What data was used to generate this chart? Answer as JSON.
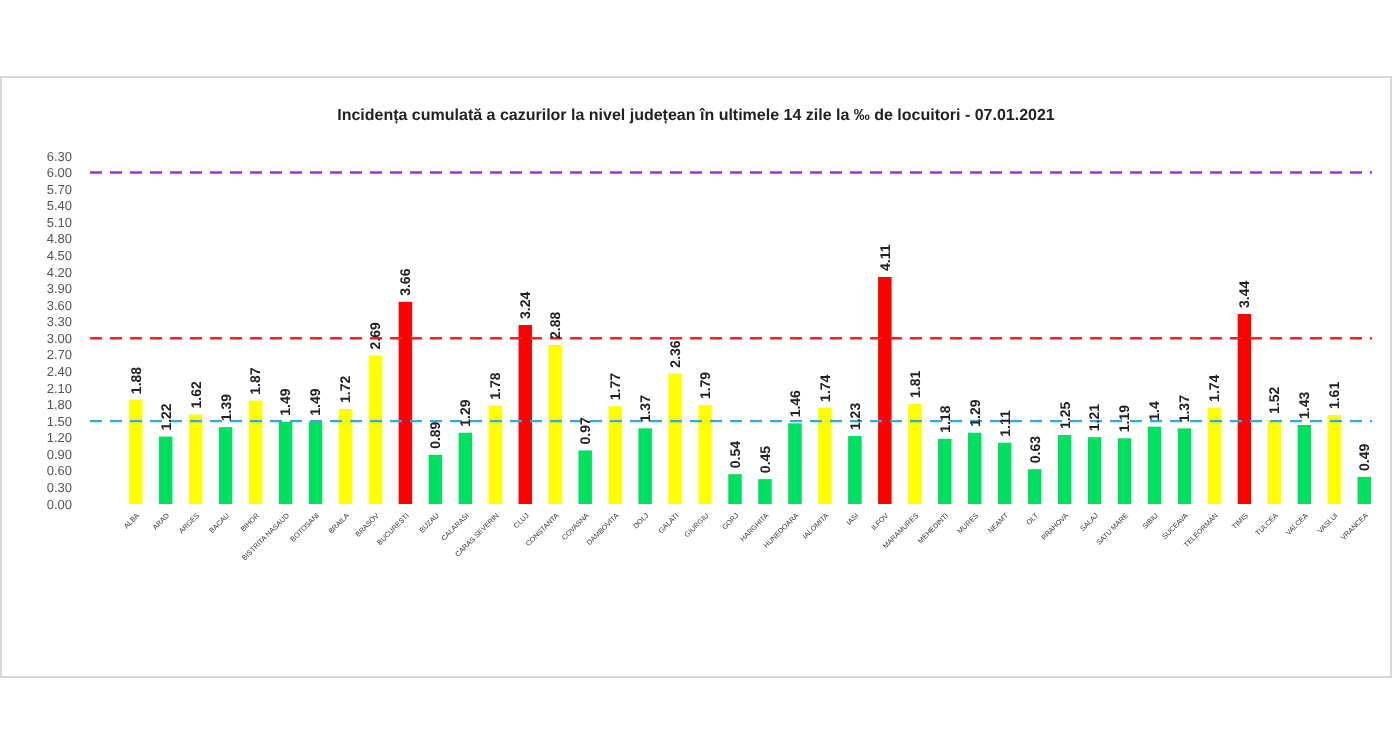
{
  "chart_data": {
    "type": "bar",
    "title": "Incidența cumulată a cazurilor la nivel județean în ultimele 14 zile la ‰ de locuitori - 07.01.2021",
    "categories": [
      "ALBA",
      "ARAD",
      "ARGES",
      "BACAU",
      "BIHOR",
      "BISTRITA NASAUD",
      "BOTOSANI",
      "BRAILA",
      "BRASOV",
      "BUCURESTI",
      "BUZAU",
      "CALARASI",
      "CARAS SEVERIN",
      "CLUJ",
      "CONSTANTA",
      "COVASNA",
      "DAMBOVITA",
      "DOLJ",
      "GALATI",
      "GIURGIU",
      "GORJ",
      "HARGHITA",
      "HUNEDOARA",
      "IALOMITA",
      "IASI",
      "ILFOV",
      "MARAMURES",
      "MEHEDINTI",
      "MURES",
      "NEAMT",
      "OLT",
      "PRAHOVA",
      "SALAJ",
      "SATU MARE",
      "SIBIU",
      "SUCEAVA",
      "TELEORMAN",
      "TIMIS",
      "TULCEA",
      "VALCEA",
      "VASLUI",
      "VRANCEA"
    ],
    "values": [
      1.88,
      1.22,
      1.62,
      1.39,
      1.87,
      1.49,
      1.49,
      1.72,
      2.69,
      3.66,
      0.89,
      1.29,
      1.78,
      3.24,
      2.88,
      0.97,
      1.77,
      1.37,
      2.36,
      1.79,
      0.54,
      0.45,
      1.46,
      1.74,
      1.23,
      4.11,
      1.81,
      1.18,
      1.29,
      1.11,
      0.63,
      1.25,
      1.21,
      1.19,
      1.4,
      1.37,
      1.74,
      3.44,
      1.52,
      1.43,
      1.61,
      0.49
    ],
    "colors": [
      "#ffff00",
      "#00e060",
      "#ffff00",
      "#00e060",
      "#ffff00",
      "#00e060",
      "#00e060",
      "#ffff00",
      "#ffff00",
      "#ff0000",
      "#00e060",
      "#00e060",
      "#ffff00",
      "#ff0000",
      "#ffff00",
      "#00e060",
      "#ffff00",
      "#00e060",
      "#ffff00",
      "#ffff00",
      "#00e060",
      "#00e060",
      "#00e060",
      "#ffff00",
      "#00e060",
      "#ff0000",
      "#ffff00",
      "#00e060",
      "#00e060",
      "#00e060",
      "#00e060",
      "#00e060",
      "#00e060",
      "#00e060",
      "#00e060",
      "#00e060",
      "#ffff00",
      "#ff0000",
      "#ffff00",
      "#00e060",
      "#ffff00",
      "#00e060"
    ],
    "ylim": [
      0,
      6.3
    ],
    "yticks": [
      {
        "value": 0,
        "label": "0.00"
      },
      {
        "value": 0.3,
        "label": "0.30"
      },
      {
        "value": 0.6,
        "label": "0.60"
      },
      {
        "value": 0.9,
        "label": "0.90"
      },
      {
        "value": 1.2,
        "label": "1.20"
      },
      {
        "value": 1.5,
        "label": "1.50"
      },
      {
        "value": 1.8,
        "label": "1.80"
      },
      {
        "value": 2.1,
        "label": "2.10"
      },
      {
        "value": 2.4,
        "label": "2.40"
      },
      {
        "value": 2.7,
        "label": "2.70"
      },
      {
        "value": 3,
        "label": "3.00"
      },
      {
        "value": 3.3,
        "label": "3.30"
      },
      {
        "value": 3.6,
        "label": "3.60"
      },
      {
        "value": 3.9,
        "label": "3.90"
      },
      {
        "value": 4.2,
        "label": "4.20"
      },
      {
        "value": 4.5,
        "label": "4.50"
      },
      {
        "value": 4.8,
        "label": "4.80"
      },
      {
        "value": 5.1,
        "label": "5.10"
      },
      {
        "value": 5.4,
        "label": "5.40"
      },
      {
        "value": 5.7,
        "label": "5.70"
      },
      {
        "value": 6,
        "label": "6.00"
      },
      {
        "value": 6.3,
        "label": "6.30"
      }
    ],
    "ref_lines": [
      {
        "axis": "y",
        "value": 6,
        "color": "#9933cc",
        "line_style": "dashed"
      },
      {
        "axis": "y",
        "value": 3,
        "color": "#ff2020",
        "line_style": "dashed"
      },
      {
        "axis": "y",
        "value": 1.5,
        "color": "#33aadd",
        "line_style": "dashed"
      }
    ],
    "data_labels": true
  }
}
